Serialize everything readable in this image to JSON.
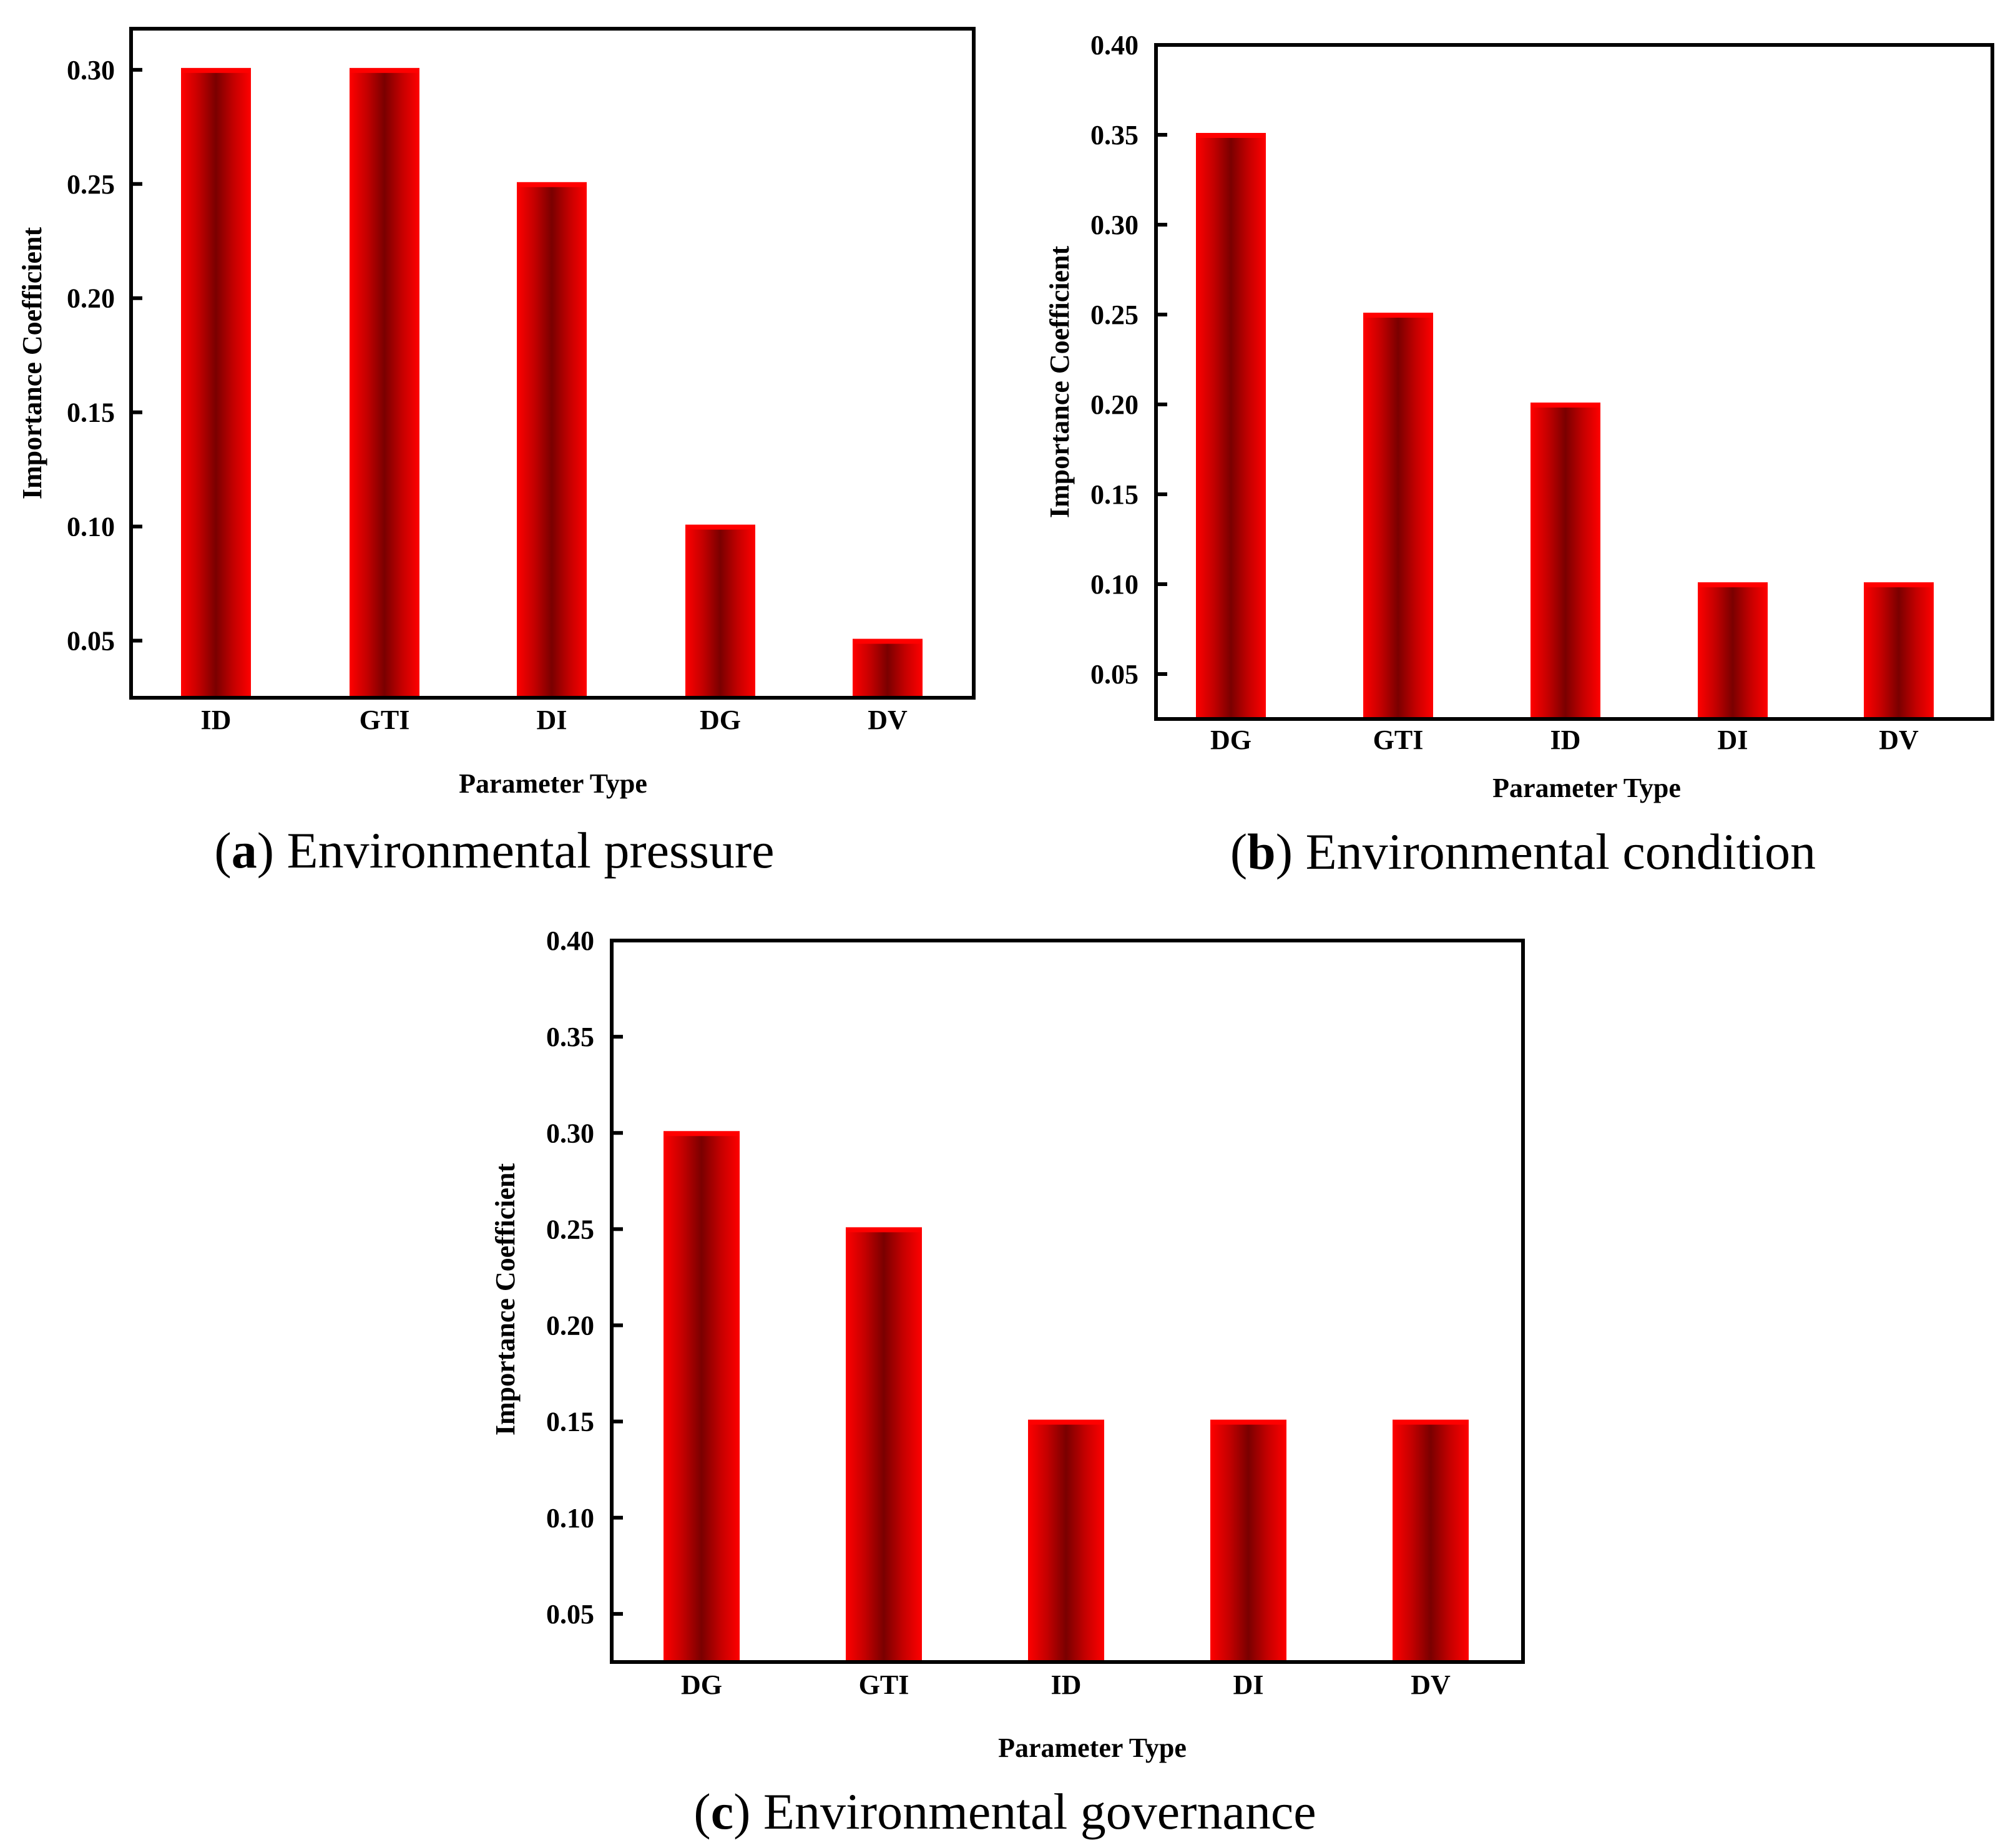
{
  "colors": {
    "bar_edge": "#ff0000",
    "bar_center": "#7a0000",
    "bar_mid": "#c40000",
    "axis": "#000000"
  },
  "chart_data": [
    {
      "type": "bar",
      "panel": "a",
      "caption_letter": "a",
      "caption_text": "Environmental pressure",
      "categories": [
        "ID",
        "GTI",
        "DI",
        "DG",
        "DV"
      ],
      "values": [
        0.3,
        0.3,
        0.25,
        0.1,
        0.05
      ],
      "ylabel": "Importance Coefficient",
      "xlabel": "Parameter Type",
      "ylim": [
        0.025,
        0.318
      ],
      "yticks": [
        0.05,
        0.1,
        0.15,
        0.2,
        0.25,
        0.3
      ],
      "ytick_labels": [
        "0.05",
        "0.10",
        "0.15",
        "0.20",
        "0.25",
        "0.30"
      ],
      "grid": false
    },
    {
      "type": "bar",
      "panel": "b",
      "caption_letter": "b",
      "caption_text": "Environmental condition",
      "categories": [
        "DG",
        "GTI",
        "ID",
        "DI",
        "DV"
      ],
      "values": [
        0.35,
        0.25,
        0.2,
        0.1,
        0.1
      ],
      "ylabel": "Importance Coefficient",
      "xlabel": "Parameter Type",
      "ylim": [
        0.025,
        0.4
      ],
      "yticks": [
        0.05,
        0.1,
        0.15,
        0.2,
        0.25,
        0.3,
        0.35,
        0.4
      ],
      "ytick_labels": [
        "0.05",
        "0.10",
        "0.15",
        "0.20",
        "0.25",
        "0.30",
        "0.35",
        "0.40"
      ],
      "grid": false
    },
    {
      "type": "bar",
      "panel": "c",
      "caption_letter": "c",
      "caption_text": "Environmental governance",
      "categories": [
        "DG",
        "GTI",
        "ID",
        "DI",
        "DV"
      ],
      "values": [
        0.3,
        0.25,
        0.15,
        0.15,
        0.15
      ],
      "ylabel": "Importance Coefficient",
      "xlabel": "Parameter Type",
      "ylim": [
        0.025,
        0.4
      ],
      "yticks": [
        0.05,
        0.1,
        0.15,
        0.2,
        0.25,
        0.3,
        0.35,
        0.4
      ],
      "ytick_labels": [
        "0.05",
        "0.10",
        "0.15",
        "0.20",
        "0.25",
        "0.30",
        "0.35",
        "0.40"
      ],
      "grid": false
    }
  ]
}
